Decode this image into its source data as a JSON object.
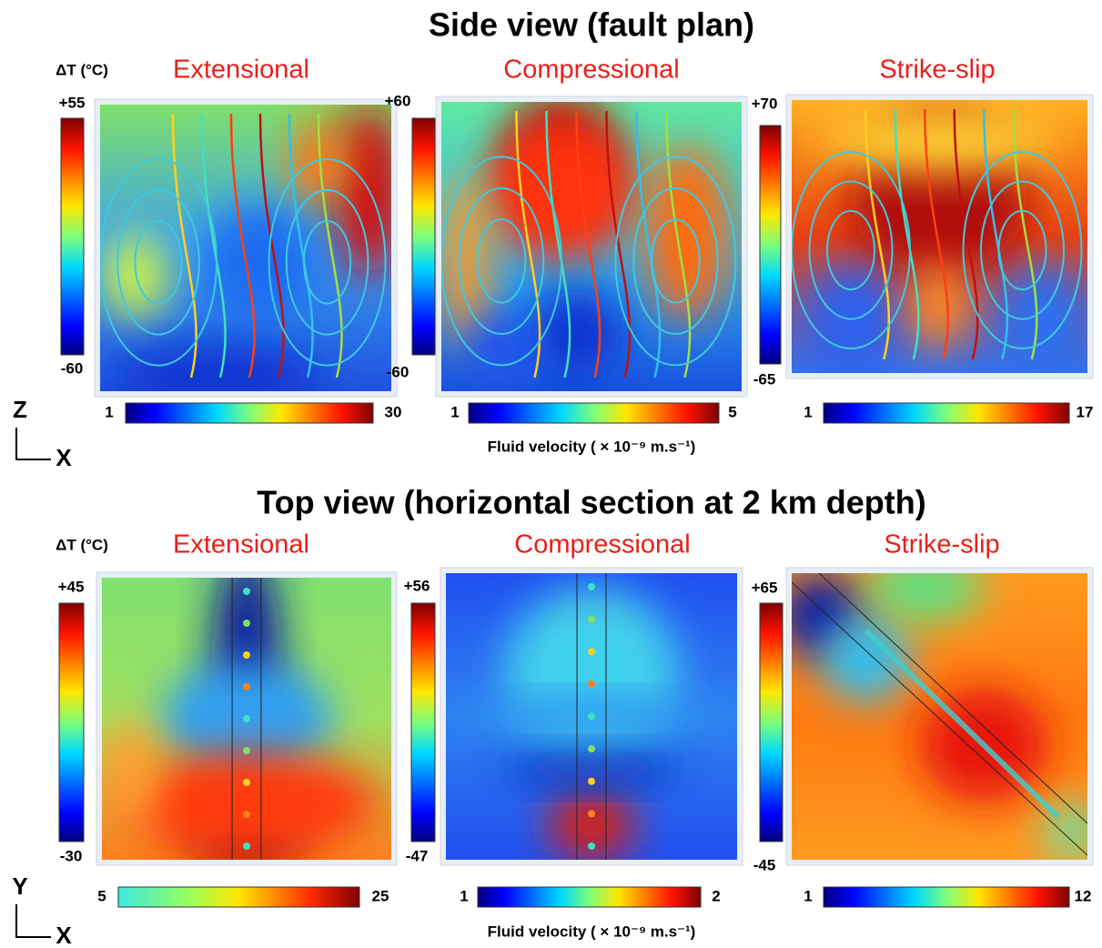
{
  "sections": [
    {
      "title": "Side view (fault plan)",
      "temperature_label": "ΔT (°C)",
      "velocity_label": "Fluid velocity ( × 10⁻⁹ m.s⁻¹)",
      "axis_vertical": "Z",
      "axis_horizontal": "X",
      "panels": [
        {
          "label": "Extensional",
          "temp_max": "+55",
          "temp_min": "-60",
          "velocity_min": "1",
          "velocity_max": "30"
        },
        {
          "label": "Compressional",
          "temp_max": "+60",
          "temp_min": "-60",
          "velocity_min": "1",
          "velocity_max": "5"
        },
        {
          "label": "Strike-slip",
          "temp_max": "+70",
          "temp_min": "-65",
          "velocity_min": "1",
          "velocity_max": "17"
        }
      ]
    },
    {
      "title": "Top view (horizontal section at 2 km depth)",
      "temperature_label": "ΔT (°C)",
      "velocity_label": "Fluid velocity ( × 10⁻⁹ m.s⁻¹)",
      "axis_vertical": "Y",
      "axis_horizontal": "X",
      "panels": [
        {
          "label": "Extensional",
          "temp_max": "+45",
          "temp_min": "-30",
          "velocity_min": "5",
          "velocity_max": "25"
        },
        {
          "label": "Compressional",
          "temp_max": "+56",
          "temp_min": "-47",
          "velocity_min": "1",
          "velocity_max": "2"
        },
        {
          "label": "Strike-slip",
          "temp_max": "+65",
          "temp_min": "-45",
          "velocity_min": "1",
          "velocity_max": "12"
        }
      ]
    }
  ]
}
